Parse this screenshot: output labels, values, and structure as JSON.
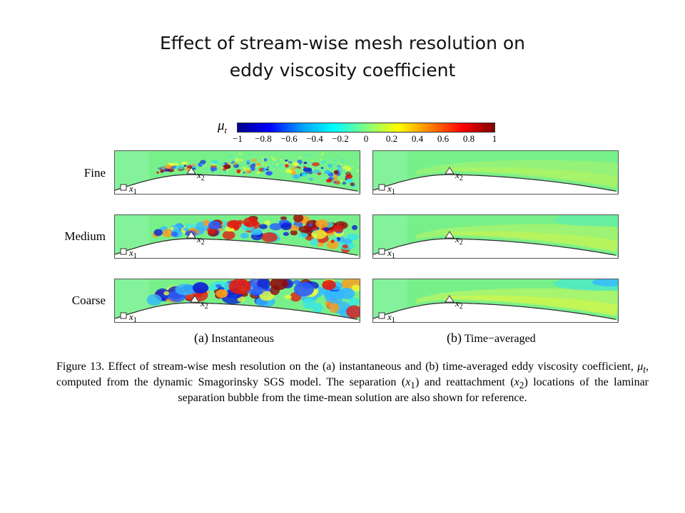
{
  "slide": {
    "title_line1": "Effect of stream-wise mesh resolution on",
    "title_line2": "eddy viscosity coefficient"
  },
  "colorbar": {
    "label": "μ",
    "label_sub": "t",
    "ticks": [
      "−1",
      "−0.8",
      "−0.6",
      "−0.4",
      "−0.2",
      "0",
      "0.2",
      "0.4",
      "0.6",
      "0.8",
      "1"
    ],
    "colors": [
      "#00008f",
      "#0000ff",
      "#00a0ff",
      "#00ffff",
      "#7fff7f",
      "#ffff00",
      "#ff8000",
      "#ff0000",
      "#800000"
    ]
  },
  "rows": [
    {
      "label": "Fine"
    },
    {
      "label": "Medium"
    },
    {
      "label": "Coarse"
    }
  ],
  "markers": {
    "x1": "x",
    "x1_sub": "1",
    "x2": "x",
    "x2_sub": "2"
  },
  "subfigures": {
    "a_tag": "(a)",
    "a_label": "Instantaneous",
    "b_tag": "(b)",
    "b_label": "Time−averaged"
  },
  "caption": {
    "part1": "Figure 13.  Effect of stream-wise mesh resolution on the (a) instantaneous and (b) time-averaged eddy viscosity coefficient, ",
    "mu": "μ",
    "mu_sub": "t",
    "part2": ", computed from the dynamic Smagorinsky SGS model. The separation (",
    "x1": "x",
    "x1_sub": "1",
    "part3": ") and reattachment (",
    "x2": "x",
    "x2_sub": "2",
    "part4": ") locations of the laminar separation bubble from the time-mean solution are also shown for reference."
  }
}
